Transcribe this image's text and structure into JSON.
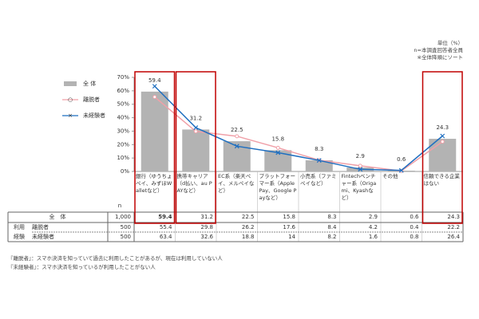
{
  "notes": [
    "単位（%）",
    "n=本調査回答者全員",
    "※全体降順にソート"
  ],
  "chart_data": {
    "type": "bar-line",
    "categories": [
      "銀行（ゆうちょペイ、みずほWalletなど）",
      "携帯キャリア（d払い、au PAYなど）",
      "EC系（楽天ペイ、メルペイなど）",
      "プラットフォーマー系（Apple Pay、Google Payなど）",
      "小売系（ファミペイなど）",
      "Fintechベンチャー系（Origami、Kyashなど）",
      "その他",
      "信頼できる企業はない"
    ],
    "series": [
      {
        "name": "全 体",
        "type": "bar",
        "color": "#b3b3b3",
        "values": [
          59.4,
          31.2,
          22.5,
          15.8,
          8.3,
          2.9,
          0.6,
          24.3
        ]
      },
      {
        "name": "離脱者",
        "type": "line",
        "marker": "circle",
        "color": "#f0a0a8",
        "values": [
          55.4,
          29.8,
          26.2,
          17.6,
          8.4,
          4.2,
          0.4,
          22.2
        ]
      },
      {
        "name": "未経験者",
        "type": "line",
        "marker": "x",
        "color": "#1f6fc0",
        "values": [
          63.4,
          32.6,
          18.8,
          14.0,
          8.2,
          1.6,
          0.8,
          26.4
        ]
      }
    ],
    "ylim": [
      0,
      70
    ],
    "yticks": [
      {
        "value": 0,
        "label": "0%"
      },
      {
        "value": 10,
        "label": "10%"
      },
      {
        "value": 20,
        "label": "20%"
      },
      {
        "value": 30,
        "label": "30%"
      },
      {
        "value": 40,
        "label": "40%"
      },
      {
        "value": 50,
        "label": "50%"
      },
      {
        "value": 60,
        "label": "60%"
      },
      {
        "value": 70,
        "label": "70%"
      }
    ],
    "highlight": [
      0,
      1,
      7
    ],
    "highlight_color": "#c00000"
  },
  "table": {
    "n_header": "n",
    "group_label": [
      "利用",
      "経験"
    ],
    "rows": [
      {
        "label": "全　体",
        "n": "1,000"
      },
      {
        "label": "離脱者",
        "n": "500"
      },
      {
        "label": "未経験者",
        "n": "500"
      }
    ]
  },
  "footnotes": [
    "『離脱者』：スマホ決済を知っていて過去に利用したことがあるが、現在は利用していない人",
    "『未経験者』：スマホ決済を知っているが利用したことがない人"
  ]
}
